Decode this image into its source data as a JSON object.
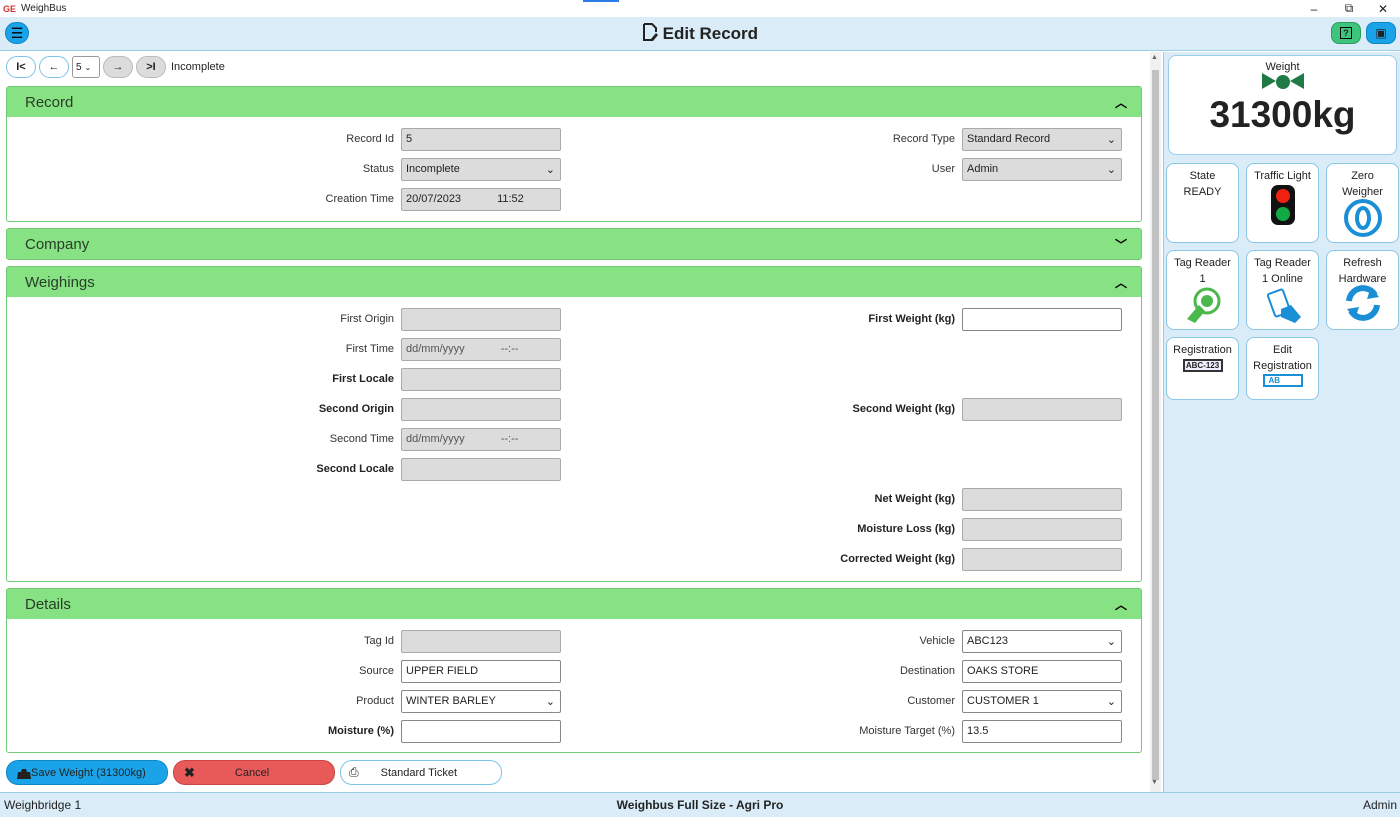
{
  "titlebar": {
    "app_name": "WeighBus",
    "minimize": "–",
    "restore": "⧉",
    "close": "✕"
  },
  "header": {
    "title": "Edit Record",
    "menu_icon": "☰",
    "help_icon": "?",
    "display_icon": "▣"
  },
  "nav": {
    "first": "I<",
    "prev": "←",
    "record_number": "5",
    "next": "→",
    "last": ">I",
    "status": "Incomplete"
  },
  "record": {
    "title": "Record",
    "record_id_label": "Record Id",
    "record_id": "5",
    "status_label": "Status",
    "status": "Incomplete",
    "creation_time_label": "Creation Time",
    "creation_date": "20/07/2023",
    "creation_clock": "11:52",
    "record_type_label": "Record Type",
    "record_type": "Standard Record",
    "user_label": "User",
    "user": "Admin"
  },
  "company": {
    "title": "Company"
  },
  "weighings": {
    "title": "Weighings",
    "first_origin_label": "First Origin",
    "first_time_label": "First Time",
    "first_date_ph": "dd/mm/yyyy",
    "first_time_ph": "--:--",
    "first_locale_label": "First Locale",
    "second_origin_label": "Second Origin",
    "second_time_label": "Second Time",
    "second_date_ph": "dd/mm/yyyy",
    "second_time_ph": "--:--",
    "second_locale_label": "Second Locale",
    "first_weight_label": "First Weight (kg)",
    "second_weight_label": "Second Weight (kg)",
    "net_weight_label": "Net Weight (kg)",
    "moisture_loss_label": "Moisture Loss (kg)",
    "corrected_weight_label": "Corrected Weight (kg)"
  },
  "details": {
    "title": "Details",
    "tag_id_label": "Tag Id",
    "source_label": "Source",
    "source": "UPPER FIELD",
    "product_label": "Product",
    "product": "WINTER BARLEY",
    "moisture_label": "Moisture (%)",
    "vehicle_label": "Vehicle",
    "vehicle": "ABC123",
    "destination_label": "Destination",
    "destination": "OAKS STORE",
    "customer_label": "Customer",
    "customer": "CUSTOMER 1",
    "moisture_target_label": "Moisture Target (%)",
    "moisture_target": "13.5"
  },
  "actions": {
    "save": "Save Weight (31300kg)",
    "cancel": "Cancel",
    "ticket": "Standard Ticket"
  },
  "side": {
    "weight_label": "Weight",
    "weight_value": "31300kg",
    "state_label": "State",
    "state_value": "READY",
    "traffic_light": "Traffic Light",
    "zero_label_1": "Zero",
    "zero_label_2": "Weigher",
    "tag_reader_1a": "Tag Reader",
    "tag_reader_1b": "1",
    "tag_reader_2a": "Tag Reader",
    "tag_reader_2b": "1 Online",
    "refresh_1": "Refresh",
    "refresh_2": "Hardware",
    "registration": "Registration",
    "registration_plate": "ABC-123",
    "edit_reg_1": "Edit",
    "edit_reg_2": "Registration",
    "edit_reg_plate": "AB"
  },
  "status": {
    "left": "Weighbridge 1",
    "center": "Weighbus Full Size - Agri Pro",
    "right": "Admin"
  },
  "colors": {
    "accent": "#1aa3e8",
    "panel_header": "#86e283",
    "cancel": "#e85a5a",
    "sidebar": "#d9ecf7"
  }
}
